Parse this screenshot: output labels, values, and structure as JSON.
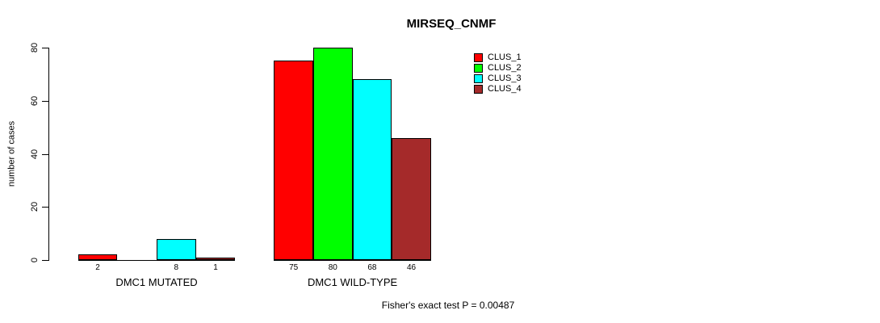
{
  "title": "MIRSEQ_CNMF",
  "footer": "Fisher's exact test P = 0.00487",
  "y_axis": {
    "label": "number of cases",
    "ticks": [
      0,
      20,
      40,
      60,
      80
    ]
  },
  "legend": {
    "items": [
      {
        "label": "CLUS_1",
        "color": "#FF0000"
      },
      {
        "label": "CLUS_2",
        "color": "#00FF00"
      },
      {
        "label": "CLUS_3",
        "color": "#00FFFF"
      },
      {
        "label": "CLUS_4",
        "color": "#A52A2A"
      }
    ]
  },
  "chart_data": {
    "type": "bar",
    "title": "MIRSEQ_CNMF",
    "ylabel": "number of cases",
    "ylim": [
      0,
      80
    ],
    "yticks": [
      0,
      20,
      40,
      60,
      80
    ],
    "categories": [
      "DMC1 MUTATED",
      "DMC1 WILD-TYPE"
    ],
    "series": [
      {
        "name": "CLUS_1",
        "color": "#FF0000",
        "values": [
          2,
          75
        ]
      },
      {
        "name": "CLUS_2",
        "color": "#00FF00",
        "values": [
          0,
          80
        ]
      },
      {
        "name": "CLUS_3",
        "color": "#00FFFF",
        "values": [
          8,
          68
        ]
      },
      {
        "name": "CLUS_4",
        "color": "#A52A2A",
        "values": [
          1,
          46
        ]
      }
    ],
    "bar_value_labels_shown": [
      [
        "2",
        "8",
        "1"
      ],
      [
        "75",
        "80",
        "68",
        "46"
      ]
    ],
    "zero_values_unlabeled": true,
    "grid": false,
    "legend_position": "right",
    "annotation": "Fisher's exact test P = 0.00487"
  }
}
